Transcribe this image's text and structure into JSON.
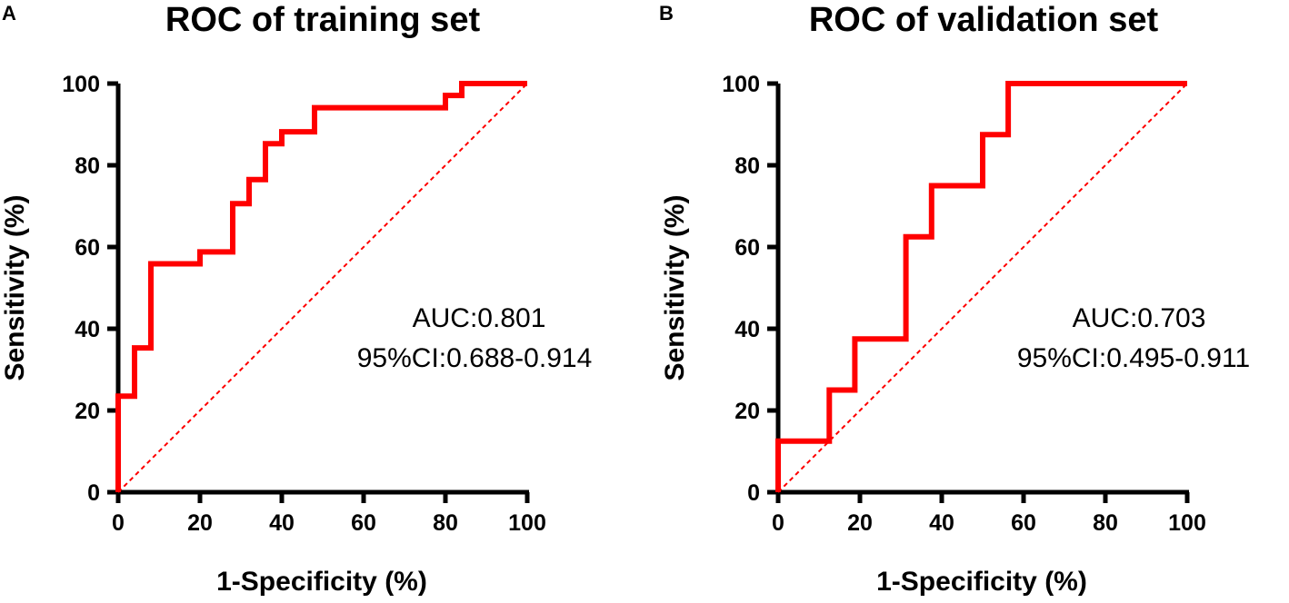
{
  "chart_data": [
    {
      "panel_label": "A",
      "type": "line",
      "title": "ROC of training set",
      "xlabel": "1-Specificity (%)",
      "ylabel": "Sensitivity (%)",
      "xlim": [
        0,
        100
      ],
      "ylim": [
        0,
        100
      ],
      "xticks": [
        "0",
        "20",
        "40",
        "60",
        "80",
        "100"
      ],
      "yticks": [
        "0",
        "20",
        "40",
        "60",
        "80",
        "100"
      ],
      "grid": false,
      "series": [
        {
          "name": "ROC curve",
          "style": "solid",
          "color": "#ff0000",
          "x": [
            0,
            0,
            4,
            4,
            8,
            8,
            20,
            20,
            28,
            28,
            32,
            32,
            36,
            36,
            40,
            40,
            48,
            48,
            80,
            80,
            84,
            84,
            100
          ],
          "y": [
            0,
            23.5,
            23.5,
            35.3,
            35.3,
            55.9,
            55.9,
            58.8,
            58.8,
            70.6,
            70.6,
            76.5,
            76.5,
            85.3,
            85.3,
            88.2,
            88.2,
            94.1,
            94.1,
            97.1,
            97.1,
            100,
            100
          ]
        },
        {
          "name": "Reference line",
          "style": "dashed",
          "color": "#ff0000",
          "x": [
            0,
            100
          ],
          "y": [
            0,
            100
          ]
        }
      ],
      "annotations": [
        "AUC:0.801",
        "95%CI:0.688-0.914"
      ]
    },
    {
      "panel_label": "B",
      "type": "line",
      "title": "ROC of validation set",
      "xlabel": "1-Specificity (%)",
      "ylabel": "Sensitivity (%)",
      "xlim": [
        0,
        100
      ],
      "ylim": [
        0,
        100
      ],
      "xticks": [
        "0",
        "20",
        "40",
        "60",
        "80",
        "100"
      ],
      "yticks": [
        "0",
        "20",
        "40",
        "60",
        "80",
        "100"
      ],
      "grid": false,
      "series": [
        {
          "name": "ROC curve",
          "style": "solid",
          "color": "#ff0000",
          "x": [
            0,
            0,
            12.5,
            12.5,
            18.75,
            18.75,
            31.25,
            31.25,
            37.5,
            37.5,
            50,
            50,
            56.25,
            56.25,
            100
          ],
          "y": [
            0,
            12.5,
            12.5,
            25,
            25,
            37.5,
            37.5,
            62.5,
            62.5,
            75,
            75,
            87.5,
            87.5,
            100,
            100
          ]
        },
        {
          "name": "Reference line",
          "style": "dashed",
          "color": "#ff0000",
          "x": [
            0,
            100
          ],
          "y": [
            0,
            100
          ]
        }
      ],
      "annotations": [
        "AUC:0.703",
        "95%CI:0.495-0.911"
      ]
    }
  ]
}
